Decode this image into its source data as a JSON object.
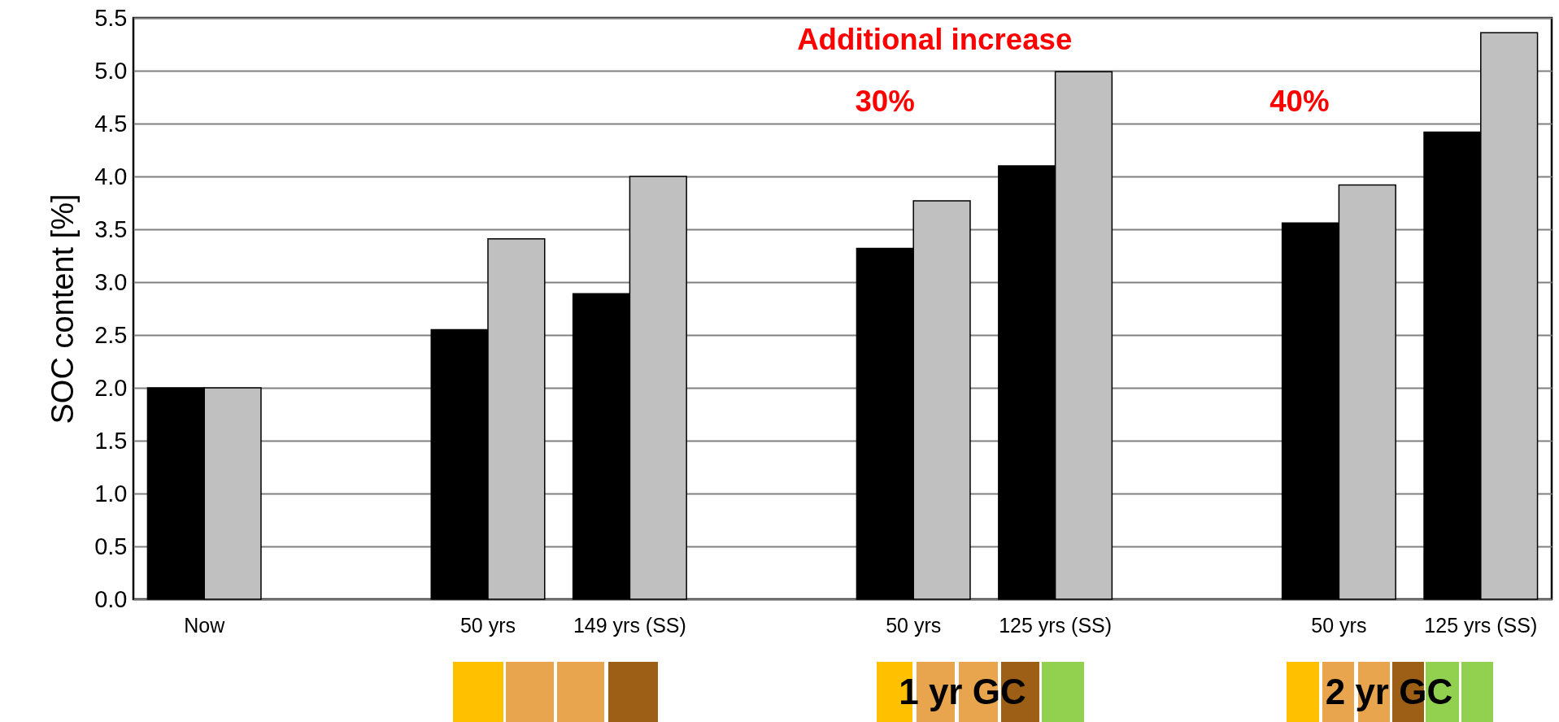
{
  "chart_data": {
    "type": "bar",
    "ylabel": "SOC content [%]",
    "categories": [
      "Now",
      null,
      "50 yrs",
      "149 yrs (SS)",
      null,
      "50 yrs",
      "125 yrs (SS)",
      null,
      "50 yrs",
      "125 yrs (SS)"
    ],
    "series": [
      {
        "color": "#000000",
        "values": [
          2.0,
          null,
          2.55,
          2.89,
          null,
          3.32,
          4.1,
          null,
          3.56,
          4.42
        ]
      },
      {
        "color": "#c0c0c0",
        "values": [
          2.0,
          null,
          3.41,
          4.0,
          null,
          3.77,
          4.99,
          null,
          3.92,
          5.36
        ]
      }
    ],
    "ylim": [
      0,
      5.5
    ],
    "yticks": [
      {
        "value": 0,
        "label": "0.0"
      },
      {
        "value": 0.5,
        "label": "0.5"
      },
      {
        "value": 1,
        "label": "1.0"
      },
      {
        "value": 1.5,
        "label": "1.5"
      },
      {
        "value": 2,
        "label": "2.0"
      },
      {
        "value": 2.5,
        "label": "2.5"
      },
      {
        "value": 3,
        "label": "3.0"
      },
      {
        "value": 3.5,
        "label": "3.5"
      },
      {
        "value": 4,
        "label": "4.0"
      },
      {
        "value": 4.5,
        "label": "4.5"
      },
      {
        "value": 5,
        "label": "5.0"
      },
      {
        "value": 5.5,
        "label": "5.5"
      }
    ],
    "grid": "y",
    "legend": false,
    "annotations": [
      "Additional increase",
      "30%",
      "40%",
      "1 yr GC",
      "2 yr GC"
    ]
  }
}
